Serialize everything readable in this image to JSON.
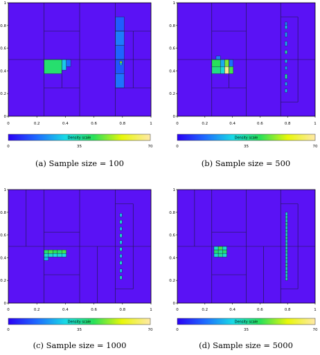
{
  "chart_data": [
    {
      "type": "heatmap",
      "caption": "(a) Sample size = 100",
      "xlim": [
        0,
        1
      ],
      "ylim": [
        0,
        1
      ],
      "x_ticks": [
        "0",
        "0.2",
        "0.4",
        "0.6",
        "0.8",
        "1"
      ],
      "y_ticks": [
        "0",
        "0.2",
        "0.4",
        "0.6",
        "0.8",
        "1"
      ],
      "colorbar": {
        "title": "Density scale",
        "ticks": [
          "0",
          "35",
          "70"
        ],
        "range": [
          0,
          70
        ]
      },
      "partition_lines": [
        {
          "x1": 0.25,
          "y1": 0,
          "x2": 0.25,
          "y2": 1
        },
        {
          "x1": 0.5,
          "y1": 0,
          "x2": 0.5,
          "y2": 1
        },
        {
          "x1": 0.75,
          "y1": 0,
          "x2": 0.75,
          "y2": 1
        },
        {
          "x1": 0,
          "y1": 0.5,
          "x2": 1,
          "y2": 0.5
        },
        {
          "x1": 0.25,
          "y1": 0.75,
          "x2": 0.5,
          "y2": 0.75
        },
        {
          "x1": 0.25,
          "y1": 0.25,
          "x2": 0.5,
          "y2": 0.25
        },
        {
          "x1": 0.75,
          "y1": 0.25,
          "x2": 1,
          "y2": 0.25
        },
        {
          "x1": 0.75,
          "y1": 0.75,
          "x2": 1,
          "y2": 0.75
        },
        {
          "x1": 0.375,
          "y1": 0.25,
          "x2": 0.375,
          "y2": 0.5
        },
        {
          "x1": 0.875,
          "y1": 0.25,
          "x2": 0.875,
          "y2": 0.75
        }
      ],
      "cells": [
        {
          "x0": 0.25,
          "x1": 0.375,
          "y0": 0.375,
          "y1": 0.5,
          "v": 40
        },
        {
          "x0": 0.375,
          "x1": 0.406,
          "y0": 0.406,
          "y1": 0.5,
          "v": 26
        },
        {
          "x0": 0.406,
          "x1": 0.4375,
          "y0": 0.4375,
          "y1": 0.5,
          "v": 14
        },
        {
          "x0": 0.75,
          "x1": 0.8125,
          "y0": 0.75,
          "y1": 0.875,
          "v": 12
        },
        {
          "x0": 0.75,
          "x1": 0.8125,
          "y0": 0.625,
          "y1": 0.75,
          "v": 16
        },
        {
          "x0": 0.75,
          "x1": 0.8125,
          "y0": 0.5,
          "y1": 0.625,
          "v": 13
        },
        {
          "x0": 0.75,
          "x1": 0.8125,
          "y0": 0.375,
          "y1": 0.5,
          "v": 11
        },
        {
          "x0": 0.75,
          "x1": 0.8125,
          "y0": 0.25,
          "y1": 0.375,
          "v": 15
        },
        {
          "x0": 0.7813,
          "x1": 0.7969,
          "y0": 0.4688,
          "y1": 0.4844,
          "v": 50
        },
        {
          "x0": 0.7813,
          "x1": 0.7969,
          "y0": 0.4531,
          "y1": 0.4688,
          "v": 28
        }
      ]
    },
    {
      "type": "heatmap",
      "caption": "(b) Sample size = 500",
      "xlim": [
        0,
        1
      ],
      "ylim": [
        0,
        1
      ],
      "x_ticks": [
        "0",
        "0.2",
        "0.4",
        "0.6",
        "0.8",
        "1"
      ],
      "y_ticks": [
        "0",
        "0.2",
        "0.4",
        "0.6",
        "0.8",
        "1"
      ],
      "colorbar": {
        "title": "Density scale",
        "ticks": [
          "0",
          "35",
          "70"
        ],
        "range": [
          0,
          70
        ]
      },
      "partition_lines": [
        {
          "x1": 0.25,
          "y1": 0,
          "x2": 0.25,
          "y2": 1
        },
        {
          "x1": 0.5,
          "y1": 0,
          "x2": 0.5,
          "y2": 1
        },
        {
          "x1": 0.75,
          "y1": 0,
          "x2": 0.75,
          "y2": 1
        },
        {
          "x1": 0,
          "y1": 0.5,
          "x2": 1,
          "y2": 0.5
        },
        {
          "x1": 0.25,
          "y1": 0.25,
          "x2": 0.5,
          "y2": 0.25
        },
        {
          "x1": 0.25,
          "y1": 0.75,
          "x2": 0.5,
          "y2": 0.75
        },
        {
          "x1": 0.75,
          "y1": 0.125,
          "x2": 0.875,
          "y2": 0.125
        },
        {
          "x1": 0.875,
          "y1": 0.125,
          "x2": 0.875,
          "y2": 0.875
        },
        {
          "x1": 0.75,
          "y1": 0.875,
          "x2": 0.875,
          "y2": 0.875
        },
        {
          "x1": 0.375,
          "y1": 0.25,
          "x2": 0.375,
          "y2": 0.5
        }
      ],
      "cells": [
        {
          "x0": 0.25,
          "x1": 0.3125,
          "y0": 0.4375,
          "y1": 0.5,
          "v": 42
        },
        {
          "x0": 0.3125,
          "x1": 0.344,
          "y0": 0.4375,
          "y1": 0.5,
          "v": 22
        },
        {
          "x0": 0.344,
          "x1": 0.375,
          "y0": 0.4375,
          "y1": 0.5,
          "v": 48
        },
        {
          "x0": 0.375,
          "x1": 0.406,
          "y0": 0.4375,
          "y1": 0.5,
          "v": 14
        },
        {
          "x0": 0.25,
          "x1": 0.3125,
          "y0": 0.375,
          "y1": 0.4375,
          "v": 38
        },
        {
          "x0": 0.3125,
          "x1": 0.344,
          "y0": 0.375,
          "y1": 0.4375,
          "v": 30
        },
        {
          "x0": 0.344,
          "x1": 0.375,
          "y0": 0.375,
          "y1": 0.4375,
          "v": 68
        },
        {
          "x0": 0.375,
          "x1": 0.406,
          "y0": 0.375,
          "y1": 0.4375,
          "v": 44
        },
        {
          "x0": 0.281,
          "x1": 0.3125,
          "y0": 0.5,
          "y1": 0.531,
          "v": 16
        },
        {
          "x0": 0.7813,
          "x1": 0.7969,
          "y0": 0.8,
          "y1": 0.83,
          "v": 17
        },
        {
          "x0": 0.7813,
          "x1": 0.7969,
          "y0": 0.77,
          "y1": 0.8,
          "v": 24
        },
        {
          "x0": 0.7813,
          "x1": 0.7969,
          "y0": 0.7,
          "y1": 0.74,
          "v": 20
        },
        {
          "x0": 0.7813,
          "x1": 0.7969,
          "y0": 0.62,
          "y1": 0.66,
          "v": 22
        },
        {
          "x0": 0.7813,
          "x1": 0.7969,
          "y0": 0.55,
          "y1": 0.58,
          "v": 34
        },
        {
          "x0": 0.7813,
          "x1": 0.7969,
          "y0": 0.47,
          "y1": 0.5,
          "v": 24
        },
        {
          "x0": 0.7813,
          "x1": 0.7969,
          "y0": 0.41,
          "y1": 0.44,
          "v": 20
        },
        {
          "x0": 0.7813,
          "x1": 0.7969,
          "y0": 0.33,
          "y1": 0.37,
          "v": 34
        },
        {
          "x0": 0.7813,
          "x1": 0.7969,
          "y0": 0.27,
          "y1": 0.3,
          "v": 22
        },
        {
          "x0": 0.7813,
          "x1": 0.7969,
          "y0": 0.21,
          "y1": 0.24,
          "v": 24
        }
      ]
    },
    {
      "type": "heatmap",
      "caption": "(c) Sample size = 1000",
      "xlim": [
        0,
        1
      ],
      "ylim": [
        0,
        1
      ],
      "x_ticks": [
        "0",
        "0.2",
        "0.4",
        "0.6",
        "0.8",
        "1"
      ],
      "y_ticks": [
        "0",
        "0.2",
        "0.4",
        "0.6",
        "0.8",
        "1"
      ],
      "colorbar": {
        "title": "Density scale",
        "ticks": [
          "0",
          "35",
          "70"
        ],
        "range": [
          0,
          70
        ]
      },
      "partition_lines": [
        {
          "x1": 0.25,
          "y1": 0,
          "x2": 0.25,
          "y2": 1
        },
        {
          "x1": 0.5,
          "y1": 0,
          "x2": 0.5,
          "y2": 1
        },
        {
          "x1": 0.75,
          "y1": 0,
          "x2": 0.75,
          "y2": 1
        },
        {
          "x1": 0,
          "y1": 0.5,
          "x2": 1,
          "y2": 0.5
        },
        {
          "x1": 0.25,
          "y1": 0.25,
          "x2": 0.5,
          "y2": 0.25
        },
        {
          "x1": 0.25,
          "y1": 0.625,
          "x2": 0.5,
          "y2": 0.625
        },
        {
          "x1": 0.75,
          "y1": 0.125,
          "x2": 0.875,
          "y2": 0.125
        },
        {
          "x1": 0.875,
          "y1": 0.125,
          "x2": 0.875,
          "y2": 0.875
        },
        {
          "x1": 0.75,
          "y1": 0.875,
          "x2": 0.875,
          "y2": 0.875
        },
        {
          "x1": 0.125,
          "y1": 0.5,
          "x2": 0.125,
          "y2": 1
        },
        {
          "x1": 0.625,
          "y1": 0,
          "x2": 0.625,
          "y2": 0.5
        }
      ],
      "cells": [
        {
          "x0": 0.25,
          "x1": 0.281,
          "y0": 0.4375,
          "y1": 0.4688,
          "v": 40
        },
        {
          "x0": 0.281,
          "x1": 0.3125,
          "y0": 0.4375,
          "y1": 0.4688,
          "v": 44
        },
        {
          "x0": 0.3125,
          "x1": 0.344,
          "y0": 0.4375,
          "y1": 0.4688,
          "v": 42
        },
        {
          "x0": 0.344,
          "x1": 0.375,
          "y0": 0.4375,
          "y1": 0.4688,
          "v": 40
        },
        {
          "x0": 0.375,
          "x1": 0.406,
          "y0": 0.4375,
          "y1": 0.4688,
          "v": 44
        },
        {
          "x0": 0.25,
          "x1": 0.281,
          "y0": 0.4063,
          "y1": 0.4375,
          "v": 30
        },
        {
          "x0": 0.281,
          "x1": 0.3125,
          "y0": 0.4063,
          "y1": 0.4375,
          "v": 30
        },
        {
          "x0": 0.3125,
          "x1": 0.344,
          "y0": 0.4063,
          "y1": 0.4375,
          "v": 28
        },
        {
          "x0": 0.344,
          "x1": 0.375,
          "y0": 0.4063,
          "y1": 0.4375,
          "v": 30
        },
        {
          "x0": 0.375,
          "x1": 0.406,
          "y0": 0.4063,
          "y1": 0.4375,
          "v": 28
        },
        {
          "x0": 0.25,
          "x1": 0.281,
          "y0": 0.375,
          "y1": 0.4063,
          "v": 22
        },
        {
          "x0": 0.7813,
          "x1": 0.7969,
          "y0": 0.76,
          "y1": 0.79,
          "v": 24
        },
        {
          "x0": 0.7813,
          "x1": 0.7969,
          "y0": 0.7,
          "y1": 0.73,
          "v": 30
        },
        {
          "x0": 0.7813,
          "x1": 0.7969,
          "y0": 0.64,
          "y1": 0.67,
          "v": 24
        },
        {
          "x0": 0.7813,
          "x1": 0.7969,
          "y0": 0.58,
          "y1": 0.61,
          "v": 30
        },
        {
          "x0": 0.7813,
          "x1": 0.7969,
          "y0": 0.52,
          "y1": 0.55,
          "v": 26
        },
        {
          "x0": 0.7813,
          "x1": 0.7969,
          "y0": 0.46,
          "y1": 0.49,
          "v": 30
        },
        {
          "x0": 0.7813,
          "x1": 0.7969,
          "y0": 0.4,
          "y1": 0.43,
          "v": 24
        },
        {
          "x0": 0.7813,
          "x1": 0.7969,
          "y0": 0.34,
          "y1": 0.37,
          "v": 30
        },
        {
          "x0": 0.7813,
          "x1": 0.7969,
          "y0": 0.27,
          "y1": 0.3,
          "v": 24
        },
        {
          "x0": 0.7813,
          "x1": 0.7969,
          "y0": 0.21,
          "y1": 0.24,
          "v": 32
        }
      ]
    },
    {
      "type": "heatmap",
      "caption": "(d) Sample size = 5000",
      "xlim": [
        0,
        1
      ],
      "ylim": [
        0,
        1
      ],
      "x_ticks": [
        "0",
        "0.2",
        "0.4",
        "0.6",
        "0.8",
        "1"
      ],
      "y_ticks": [
        "0",
        "0.2",
        "0.4",
        "0.6",
        "0.8",
        "1"
      ],
      "colorbar": {
        "title": "Density scale",
        "ticks": [
          "0",
          "35",
          "70"
        ],
        "range": [
          0,
          70
        ]
      },
      "partition_lines": [
        {
          "x1": 0.25,
          "y1": 0,
          "x2": 0.25,
          "y2": 1
        },
        {
          "x1": 0.5,
          "y1": 0,
          "x2": 0.5,
          "y2": 1
        },
        {
          "x1": 0.75,
          "y1": 0,
          "x2": 0.75,
          "y2": 1
        },
        {
          "x1": 0,
          "y1": 0.5,
          "x2": 1,
          "y2": 0.5
        },
        {
          "x1": 0.25,
          "y1": 0.25,
          "x2": 0.5,
          "y2": 0.25
        },
        {
          "x1": 0.25,
          "y1": 0.625,
          "x2": 0.5,
          "y2": 0.625
        },
        {
          "x1": 0.75,
          "y1": 0.125,
          "x2": 0.875,
          "y2": 0.125
        },
        {
          "x1": 0.875,
          "y1": 0.125,
          "x2": 0.875,
          "y2": 0.875
        },
        {
          "x1": 0.75,
          "y1": 0.875,
          "x2": 0.875,
          "y2": 0.875
        },
        {
          "x1": 0.125,
          "y1": 0.5,
          "x2": 0.125,
          "y2": 1
        },
        {
          "x1": 0.625,
          "y1": 0,
          "x2": 0.625,
          "y2": 0.5
        }
      ],
      "cells": [
        {
          "x0": 0.266,
          "x1": 0.297,
          "y0": 0.469,
          "y1": 0.5,
          "v": 30
        },
        {
          "x0": 0.297,
          "x1": 0.328,
          "y0": 0.469,
          "y1": 0.5,
          "v": 44
        },
        {
          "x0": 0.328,
          "x1": 0.359,
          "y0": 0.469,
          "y1": 0.5,
          "v": 30
        },
        {
          "x0": 0.266,
          "x1": 0.297,
          "y0": 0.438,
          "y1": 0.469,
          "v": 40
        },
        {
          "x0": 0.297,
          "x1": 0.328,
          "y0": 0.438,
          "y1": 0.469,
          "v": 36
        },
        {
          "x0": 0.328,
          "x1": 0.359,
          "y0": 0.438,
          "y1": 0.469,
          "v": 40
        },
        {
          "x0": 0.266,
          "x1": 0.297,
          "y0": 0.406,
          "y1": 0.438,
          "v": 30
        },
        {
          "x0": 0.297,
          "x1": 0.328,
          "y0": 0.406,
          "y1": 0.438,
          "v": 36
        },
        {
          "x0": 0.328,
          "x1": 0.359,
          "y0": 0.406,
          "y1": 0.438,
          "v": 30
        },
        {
          "x0": 0.785,
          "x1": 0.799,
          "y0": 0.77,
          "y1": 0.8,
          "v": 30
        },
        {
          "x0": 0.785,
          "x1": 0.799,
          "y0": 0.74,
          "y1": 0.77,
          "v": 34
        },
        {
          "x0": 0.785,
          "x1": 0.799,
          "y0": 0.71,
          "y1": 0.74,
          "v": 32
        },
        {
          "x0": 0.785,
          "x1": 0.799,
          "y0": 0.68,
          "y1": 0.71,
          "v": 36
        },
        {
          "x0": 0.785,
          "x1": 0.799,
          "y0": 0.65,
          "y1": 0.68,
          "v": 32
        },
        {
          "x0": 0.785,
          "x1": 0.799,
          "y0": 0.62,
          "y1": 0.65,
          "v": 34
        },
        {
          "x0": 0.785,
          "x1": 0.799,
          "y0": 0.59,
          "y1": 0.62,
          "v": 32
        },
        {
          "x0": 0.785,
          "x1": 0.799,
          "y0": 0.56,
          "y1": 0.59,
          "v": 36
        },
        {
          "x0": 0.785,
          "x1": 0.799,
          "y0": 0.53,
          "y1": 0.56,
          "v": 32
        },
        {
          "x0": 0.785,
          "x1": 0.799,
          "y0": 0.5,
          "y1": 0.53,
          "v": 34
        },
        {
          "x0": 0.785,
          "x1": 0.799,
          "y0": 0.47,
          "y1": 0.5,
          "v": 32
        },
        {
          "x0": 0.785,
          "x1": 0.799,
          "y0": 0.44,
          "y1": 0.47,
          "v": 36
        },
        {
          "x0": 0.785,
          "x1": 0.799,
          "y0": 0.41,
          "y1": 0.44,
          "v": 32
        },
        {
          "x0": 0.785,
          "x1": 0.799,
          "y0": 0.38,
          "y1": 0.41,
          "v": 34
        },
        {
          "x0": 0.785,
          "x1": 0.799,
          "y0": 0.35,
          "y1": 0.38,
          "v": 32
        },
        {
          "x0": 0.785,
          "x1": 0.799,
          "y0": 0.32,
          "y1": 0.35,
          "v": 36
        },
        {
          "x0": 0.785,
          "x1": 0.799,
          "y0": 0.29,
          "y1": 0.32,
          "v": 32
        },
        {
          "x0": 0.785,
          "x1": 0.799,
          "y0": 0.26,
          "y1": 0.29,
          "v": 34
        },
        {
          "x0": 0.785,
          "x1": 0.799,
          "y0": 0.23,
          "y1": 0.26,
          "v": 32
        },
        {
          "x0": 0.785,
          "x1": 0.799,
          "y0": 0.2,
          "y1": 0.23,
          "v": 34
        }
      ]
    }
  ],
  "colors": {
    "background_density": "#5a12f5",
    "partition_line": "#1a1a3a",
    "colormap": [
      "#2a00f5",
      "#1e6bff",
      "#19d9e6",
      "#28e05a",
      "#e8f70a",
      "#ffe9a8"
    ]
  }
}
